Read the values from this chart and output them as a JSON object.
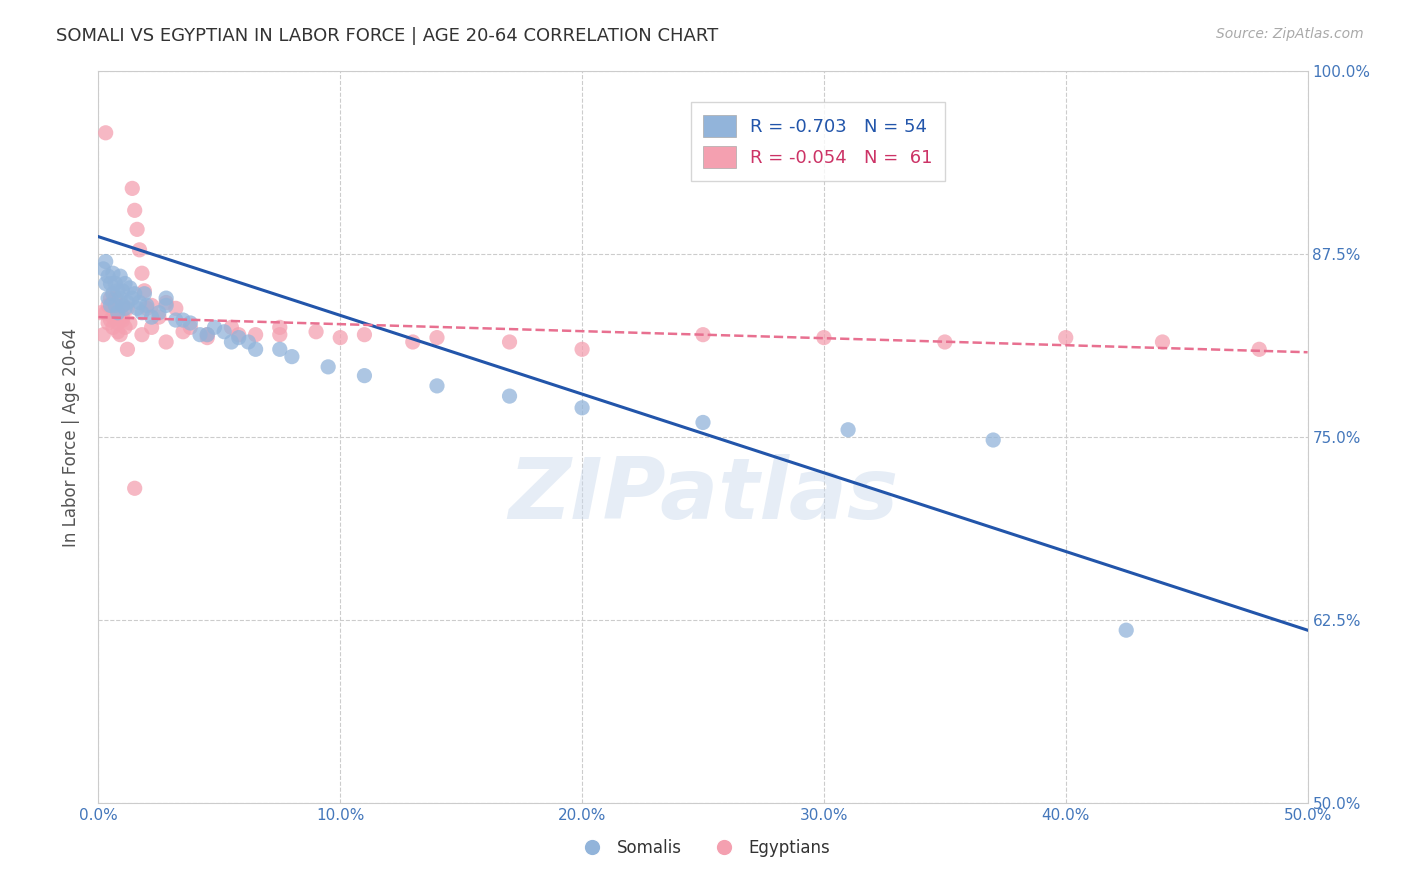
{
  "title": "SOMALI VS EGYPTIAN IN LABOR FORCE | AGE 20-64 CORRELATION CHART",
  "source": "Source: ZipAtlas.com",
  "ylabel": "In Labor Force | Age 20-64",
  "xlim": [
    0.0,
    0.5
  ],
  "ylim": [
    0.5,
    1.0
  ],
  "xticks": [
    0.0,
    0.1,
    0.2,
    0.3,
    0.4,
    0.5
  ],
  "xticklabels": [
    "0.0%",
    "10.0%",
    "20.0%",
    "30.0%",
    "40.0%",
    "50.0%"
  ],
  "yticks": [
    0.5,
    0.625,
    0.75,
    0.875,
    1.0
  ],
  "yticklabels": [
    "50.0%",
    "62.5%",
    "75.0%",
    "87.5%",
    "100.0%"
  ],
  "legend_blue_R": "R = -0.703",
  "legend_blue_N": "N = 54",
  "legend_pink_R": "R = -0.054",
  "legend_pink_N": "N =  61",
  "blue_color": "#92B4DA",
  "pink_color": "#F4A0B0",
  "blue_line_color": "#2255AA",
  "pink_line_color": "#E87090",
  "watermark": "ZIPatlas",
  "blue_line_x0": 0.0,
  "blue_line_y0": 0.887,
  "blue_line_x1": 0.5,
  "blue_line_y1": 0.618,
  "pink_line_x0": 0.0,
  "pink_line_x1": 0.5,
  "pink_line_y0": 0.832,
  "pink_line_y1": 0.808,
  "somali_x": [
    0.002,
    0.003,
    0.003,
    0.004,
    0.004,
    0.005,
    0.005,
    0.006,
    0.006,
    0.007,
    0.007,
    0.008,
    0.008,
    0.009,
    0.009,
    0.01,
    0.01,
    0.011,
    0.011,
    0.012,
    0.013,
    0.014,
    0.015,
    0.016,
    0.017,
    0.018,
    0.019,
    0.02,
    0.022,
    0.025,
    0.028,
    0.032,
    0.038,
    0.045,
    0.055,
    0.065,
    0.08,
    0.095,
    0.11,
    0.14,
    0.17,
    0.2,
    0.25,
    0.31,
    0.37,
    0.425,
    0.048,
    0.058,
    0.028,
    0.035,
    0.042,
    0.052,
    0.062,
    0.075
  ],
  "somali_y": [
    0.865,
    0.87,
    0.855,
    0.86,
    0.845,
    0.855,
    0.84,
    0.862,
    0.848,
    0.855,
    0.84,
    0.85,
    0.835,
    0.845,
    0.86,
    0.85,
    0.84,
    0.855,
    0.838,
    0.842,
    0.852,
    0.845,
    0.848,
    0.838,
    0.842,
    0.835,
    0.848,
    0.84,
    0.832,
    0.835,
    0.845,
    0.83,
    0.828,
    0.82,
    0.815,
    0.81,
    0.805,
    0.798,
    0.792,
    0.785,
    0.778,
    0.77,
    0.76,
    0.755,
    0.748,
    0.618,
    0.825,
    0.818,
    0.84,
    0.83,
    0.82,
    0.822,
    0.815,
    0.81
  ],
  "egypt_x": [
    0.001,
    0.002,
    0.003,
    0.004,
    0.005,
    0.005,
    0.006,
    0.006,
    0.007,
    0.007,
    0.008,
    0.008,
    0.009,
    0.01,
    0.01,
    0.011,
    0.012,
    0.013,
    0.014,
    0.015,
    0.016,
    0.017,
    0.018,
    0.019,
    0.02,
    0.022,
    0.025,
    0.028,
    0.032,
    0.038,
    0.045,
    0.055,
    0.065,
    0.075,
    0.09,
    0.11,
    0.14,
    0.17,
    0.2,
    0.25,
    0.3,
    0.35,
    0.4,
    0.44,
    0.48,
    0.003,
    0.004,
    0.006,
    0.008,
    0.01,
    0.012,
    0.015,
    0.018,
    0.022,
    0.028,
    0.035,
    0.045,
    0.058,
    0.075,
    0.1,
    0.13
  ],
  "egypt_y": [
    0.835,
    0.82,
    0.958,
    0.84,
    0.83,
    0.845,
    0.825,
    0.838,
    0.832,
    0.845,
    0.828,
    0.838,
    0.82,
    0.832,
    0.84,
    0.825,
    0.838,
    0.828,
    0.92,
    0.905,
    0.892,
    0.878,
    0.862,
    0.85,
    0.838,
    0.84,
    0.832,
    0.842,
    0.838,
    0.825,
    0.82,
    0.825,
    0.82,
    0.825,
    0.822,
    0.82,
    0.818,
    0.815,
    0.81,
    0.82,
    0.818,
    0.815,
    0.818,
    0.815,
    0.81,
    0.835,
    0.828,
    0.832,
    0.822,
    0.83,
    0.81,
    0.715,
    0.82,
    0.825,
    0.815,
    0.822,
    0.818,
    0.82,
    0.82,
    0.818,
    0.815
  ]
}
